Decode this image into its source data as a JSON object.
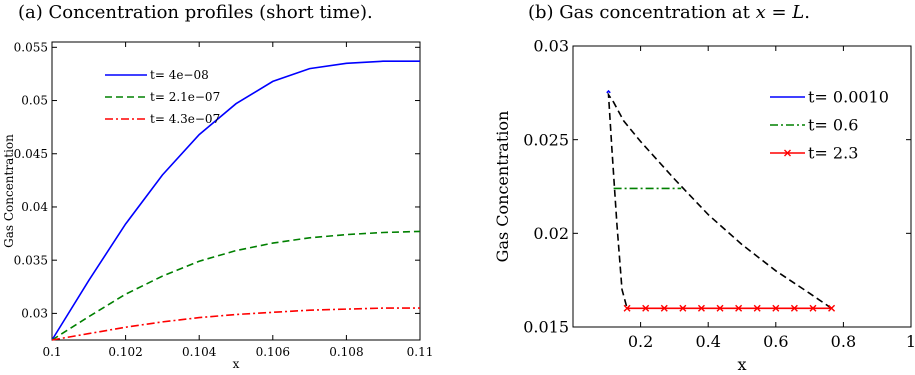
{
  "chart_data": [
    {
      "type": "line",
      "caption": "(a) Concentration profiles (short time).",
      "xlabel": "x",
      "ylabel": "Gas Concentration",
      "xlim": [
        0.1,
        0.11
      ],
      "ylim": [
        0.0275,
        0.0555
      ],
      "x_ticks": [
        "0.1",
        "0.102",
        "0.104",
        "0.106",
        "0.108",
        "0.11"
      ],
      "y_ticks": [
        "0.03",
        "0.035",
        "0.04",
        "0.045",
        "0.05",
        "0.055"
      ],
      "legend_position": "top-left",
      "series": [
        {
          "name": "t= 4e−08",
          "color": "#0000ff",
          "style": "solid",
          "x": [
            0.1,
            0.101,
            0.102,
            0.103,
            0.104,
            0.105,
            0.106,
            0.107,
            0.108,
            0.109,
            0.11
          ],
          "y": [
            0.0275,
            0.0331,
            0.0384,
            0.043,
            0.0468,
            0.0497,
            0.0518,
            0.053,
            0.0535,
            0.0537,
            0.0537
          ]
        },
        {
          "name": "t= 2.1e−07",
          "color": "#008000",
          "style": "dashed",
          "x": [
            0.1,
            0.101,
            0.102,
            0.103,
            0.104,
            0.105,
            0.106,
            0.107,
            0.108,
            0.109,
            0.11
          ],
          "y": [
            0.0275,
            0.0297,
            0.0318,
            0.0335,
            0.0349,
            0.0359,
            0.0366,
            0.0371,
            0.0374,
            0.0376,
            0.0377
          ]
        },
        {
          "name": "t= 4.3e−07",
          "color": "#ff0000",
          "style": "dashdot",
          "x": [
            0.1,
            0.101,
            0.102,
            0.103,
            0.104,
            0.105,
            0.106,
            0.107,
            0.108,
            0.109,
            0.11
          ],
          "y": [
            0.0275,
            0.0281,
            0.0287,
            0.0292,
            0.0296,
            0.0299,
            0.0301,
            0.0303,
            0.0304,
            0.0305,
            0.0305
          ]
        }
      ]
    },
    {
      "type": "line",
      "caption": "(b) Gas concentration at x = L.",
      "xlabel": "x",
      "ylabel": "Gas Concentration",
      "xlim": [
        0,
        1
      ],
      "ylim": [
        0.015,
        0.03
      ],
      "x_ticks": [
        "0.2",
        "0.4",
        "0.6",
        "0.8",
        "1"
      ],
      "y_ticks": [
        "0.015",
        "0.02",
        "0.025",
        "0.03"
      ],
      "legend_position": "top-right",
      "series": [
        {
          "name": "t= 0.0010",
          "color": "#0000ff",
          "style": "solid",
          "x": [
            0.1,
            0.105,
            0.11
          ],
          "y": [
            0.0275,
            0.0276,
            0.0275
          ]
        },
        {
          "name": "t= 0.6",
          "color": "#008000",
          "style": "dashdot",
          "x": [
            0.12,
            0.16,
            0.2,
            0.24,
            0.28,
            0.32
          ],
          "y": [
            0.0224,
            0.0224,
            0.0224,
            0.0224,
            0.0224,
            0.0224
          ]
        },
        {
          "name": "t= 2.3",
          "color": "#ff0000",
          "style": "solid",
          "marker": "x",
          "x": [
            0.16,
            0.215,
            0.27,
            0.325,
            0.38,
            0.435,
            0.49,
            0.545,
            0.6,
            0.655,
            0.71,
            0.765
          ],
          "y": [
            0.016,
            0.016,
            0.016,
            0.016,
            0.016,
            0.016,
            0.016,
            0.016,
            0.016,
            0.016,
            0.016,
            0.016
          ]
        }
      ],
      "envelope": {
        "color": "#000000",
        "style": "dashed",
        "x": [
          0.765,
          0.7,
          0.6,
          0.5,
          0.4,
          0.3,
          0.2,
          0.15,
          0.12,
          0.105,
          0.115,
          0.13,
          0.145,
          0.16
        ],
        "y": [
          0.016,
          0.0168,
          0.018,
          0.0194,
          0.021,
          0.0229,
          0.0249,
          0.026,
          0.027,
          0.0274,
          0.0245,
          0.0205,
          0.017,
          0.016
        ]
      }
    }
  ]
}
